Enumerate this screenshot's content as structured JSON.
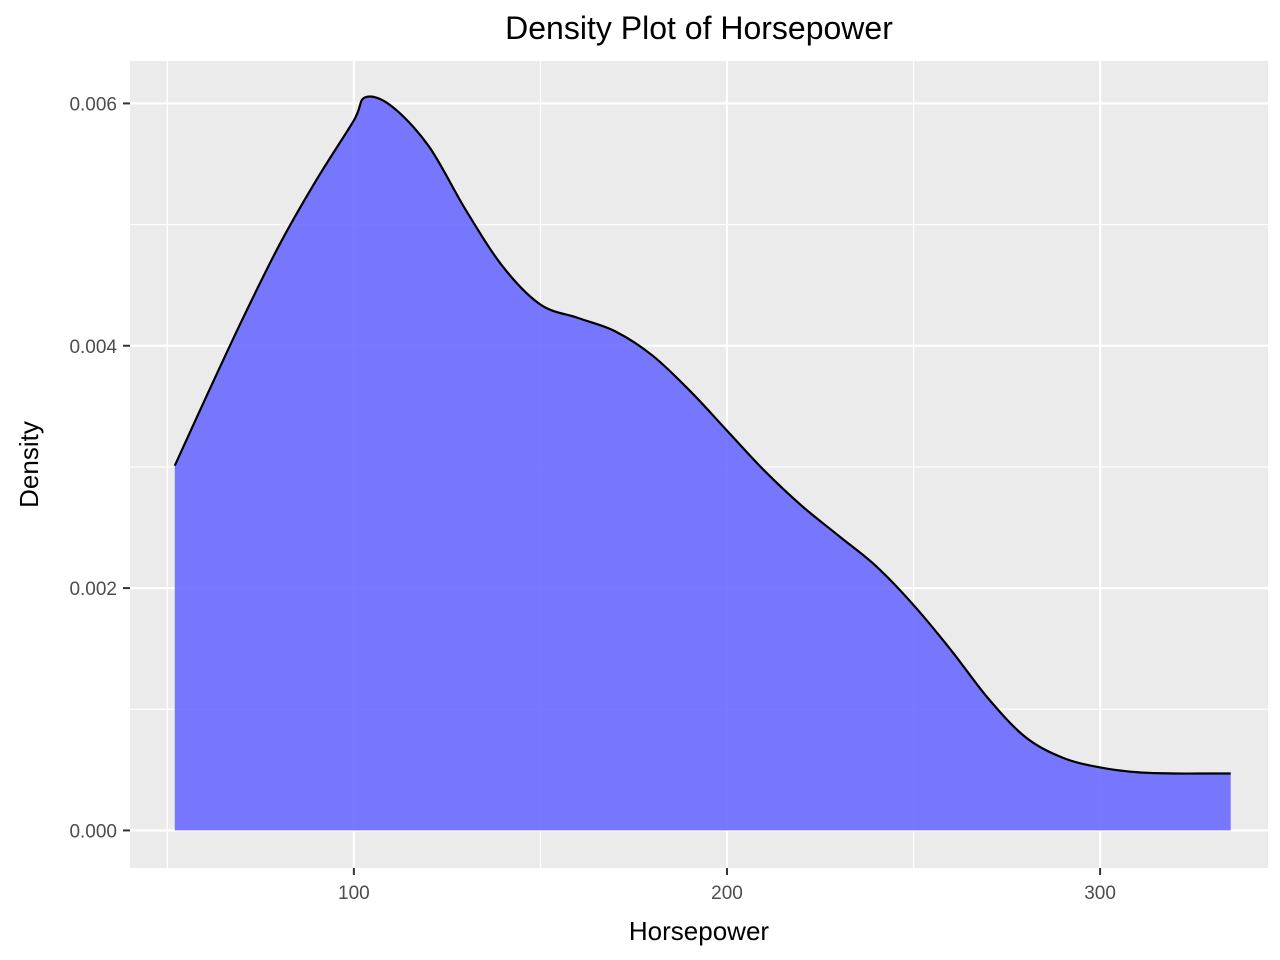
{
  "chart_data": {
    "type": "area",
    "title": "Density Plot of Horsepower",
    "xlabel": "Horsepower",
    "ylabel": "Density",
    "xlim": [
      40,
      345
    ],
    "ylim": [
      -0.00031,
      0.00635
    ],
    "x_ticks": [
      100,
      200,
      300
    ],
    "x_tick_labels": [
      "100",
      "200",
      "300"
    ],
    "y_ticks": [
      0,
      0.002,
      0.004,
      0.006
    ],
    "y_tick_labels": [
      "0.000",
      "0.002",
      "0.004",
      "0.006"
    ],
    "grid": true,
    "legend": "none",
    "fill_color": "#6666ff",
    "line_color": "#000000",
    "panel_background": "#ebebeb",
    "series": [
      {
        "x": [
          52,
          60,
          70,
          80,
          90,
          100,
          103,
          110,
          120,
          130,
          140,
          150,
          160,
          170,
          180,
          190,
          200,
          210,
          220,
          230,
          240,
          250,
          260,
          270,
          280,
          290,
          300,
          310,
          320,
          330,
          335
        ],
        "y": [
          0.00301,
          0.00355,
          0.00421,
          0.00483,
          0.00537,
          0.00586,
          0.00605,
          0.00598,
          0.00565,
          0.00512,
          0.00465,
          0.00434,
          0.00423,
          0.00412,
          0.00392,
          0.00363,
          0.0033,
          0.00297,
          0.00268,
          0.00243,
          0.00218,
          0.00186,
          0.00149,
          0.00109,
          0.00077,
          0.0006,
          0.00052,
          0.00048,
          0.00047,
          0.00047,
          0.00047
        ]
      }
    ]
  }
}
